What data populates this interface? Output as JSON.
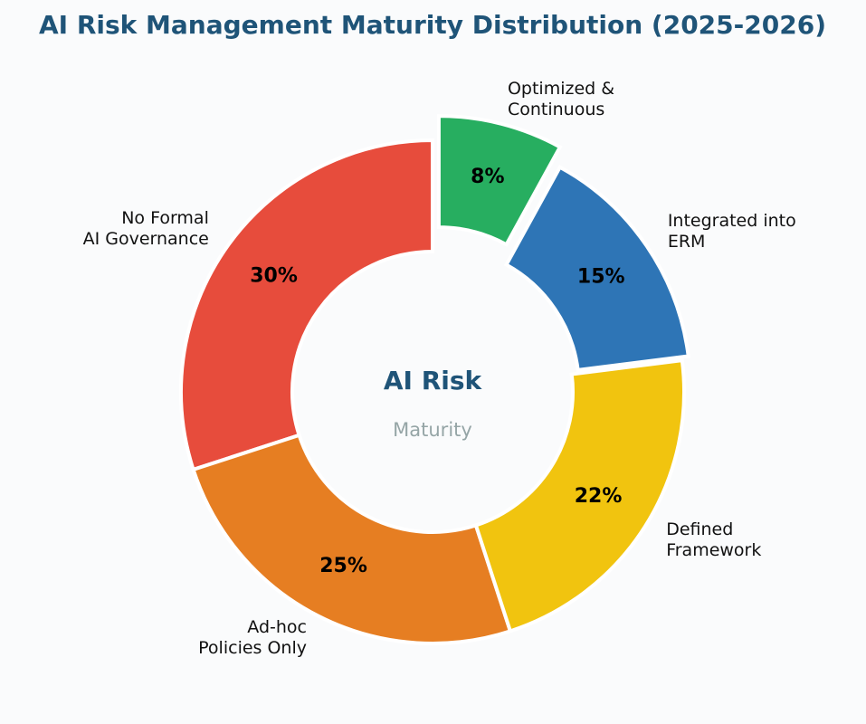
{
  "chart_data": {
    "type": "donut",
    "title": "AI Risk Management Maturity Distribution (2025-2026)",
    "center_title": "AI Risk",
    "center_subtitle": "Maturity",
    "categories": [
      "No Formal\nAI Governance",
      "Ad-hoc\nPolicies Only",
      "Defined\nFramework",
      "Integrated into\nERM",
      "Optimized &\nContinuous"
    ],
    "values": [
      30,
      25,
      22,
      15,
      8
    ],
    "value_labels": [
      "30%",
      "25%",
      "22%",
      "15%",
      "8%"
    ],
    "colors": [
      "#e74c3c",
      "#e67e22",
      "#f1c40f",
      "#2e75b6",
      "#27ae60"
    ],
    "explode": [
      0,
      0,
      0,
      0.03,
      0.1
    ],
    "start_angle": 90,
    "counterclock": true
  }
}
